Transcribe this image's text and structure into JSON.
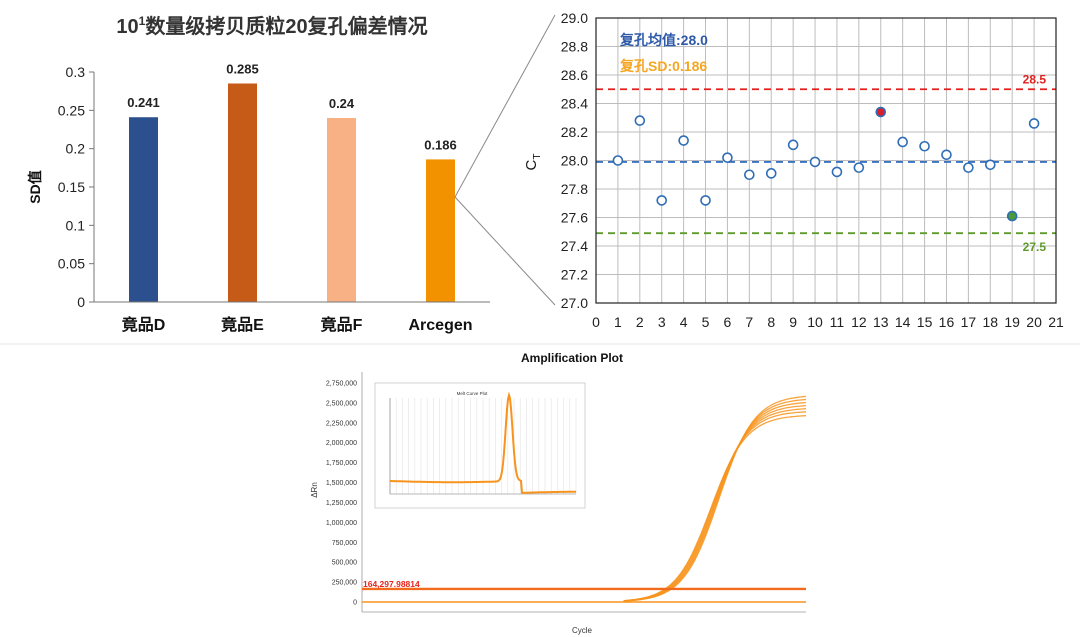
{
  "chart_data": [
    {
      "type": "bar",
      "title": "10¹数量级拷贝质粒20复孔偏差情况",
      "title_base": "10",
      "title_sup": "1",
      "title_rest": "数量级拷贝质粒20复孔偏差情况",
      "ylabel": "SD值",
      "xlabel": "",
      "ylim": [
        0,
        0.3
      ],
      "yticks": [
        "0",
        "0.05",
        "0.1",
        "0.15",
        "0.2",
        "0.25",
        "0.3"
      ],
      "categories": [
        "竟品D",
        "竟品E",
        "竟品F",
        "Arcegen"
      ],
      "values": [
        0.241,
        0.285,
        0.24,
        0.186
      ],
      "value_labels": [
        "0.241",
        "0.285",
        "0.24",
        "0.186"
      ],
      "colors": [
        "#2c4f8e",
        "#c65a17",
        "#f7b184",
        "#f39200"
      ],
      "grid": false
    },
    {
      "type": "scatter",
      "title": "",
      "xlabel": "",
      "ylabel_base": "C",
      "ylabel_sub": "T",
      "xlim": [
        0,
        21
      ],
      "ylim": [
        27.0,
        29.0
      ],
      "xticks": [
        "0",
        "1",
        "2",
        "3",
        "4",
        "5",
        "6",
        "7",
        "8",
        "9",
        "10",
        "11",
        "12",
        "13",
        "14",
        "15",
        "16",
        "17",
        "18",
        "19",
        "20",
        "21"
      ],
      "yticks": [
        "27.0",
        "27.2",
        "27.4",
        "27.6",
        "27.8",
        "28.0",
        "28.2",
        "28.4",
        "28.6",
        "28.8",
        "29.0"
      ],
      "grid": true,
      "annotations": {
        "mean_text": "复孔均值:28.0",
        "sd_text": "复孔SD:0.186",
        "mean_color": "#2e5aa8",
        "sd_color": "#f5a623"
      },
      "reference_lines": [
        {
          "y": 28.5,
          "label": "28.5",
          "color": "#e0201c"
        },
        {
          "y": 27.99,
          "label": "",
          "color": "#3a72c4"
        },
        {
          "y": 27.49,
          "label": "27.5",
          "color": "#5e9a2c"
        }
      ],
      "points": {
        "x": [
          1,
          2,
          3,
          4,
          5,
          6,
          7,
          8,
          9,
          10,
          11,
          12,
          13,
          14,
          15,
          16,
          17,
          18,
          19,
          20
        ],
        "y": [
          28.0,
          28.28,
          27.72,
          28.14,
          27.72,
          28.02,
          27.9,
          27.91,
          28.11,
          27.99,
          27.92,
          27.95,
          28.34,
          28.13,
          28.1,
          28.04,
          27.95,
          27.97,
          27.61,
          28.26
        ],
        "highlight": {
          "13": "#d8202c",
          "19": "#4a9a3a"
        }
      }
    },
    {
      "type": "line",
      "title": "Amplification Plot",
      "xlabel": "Cycle",
      "ylabel": "ΔRn",
      "ylim": [
        0,
        2750000
      ],
      "yticks": [
        "0",
        "250,000",
        "500,000",
        "750,000",
        "1,000,000",
        "1,250,000",
        "1,500,000",
        "1,750,000",
        "2,000,000",
        "2,250,000",
        "2,500,000",
        "2,750,000"
      ],
      "xlim": [
        1,
        40
      ],
      "threshold": {
        "value": 164297.98814,
        "label": "164,297.98814",
        "color": "#e8231c"
      },
      "curve_color": "#f7941d",
      "curve_midpoint_cycle": 32,
      "curve_plateau": [
        2350000,
        2400000,
        2440000,
        2480000,
        2520000,
        2560000,
        2600000
      ],
      "inset": {
        "title": "Melt Curve Plot",
        "type": "line",
        "peak_x_fraction": 0.64
      }
    }
  ]
}
